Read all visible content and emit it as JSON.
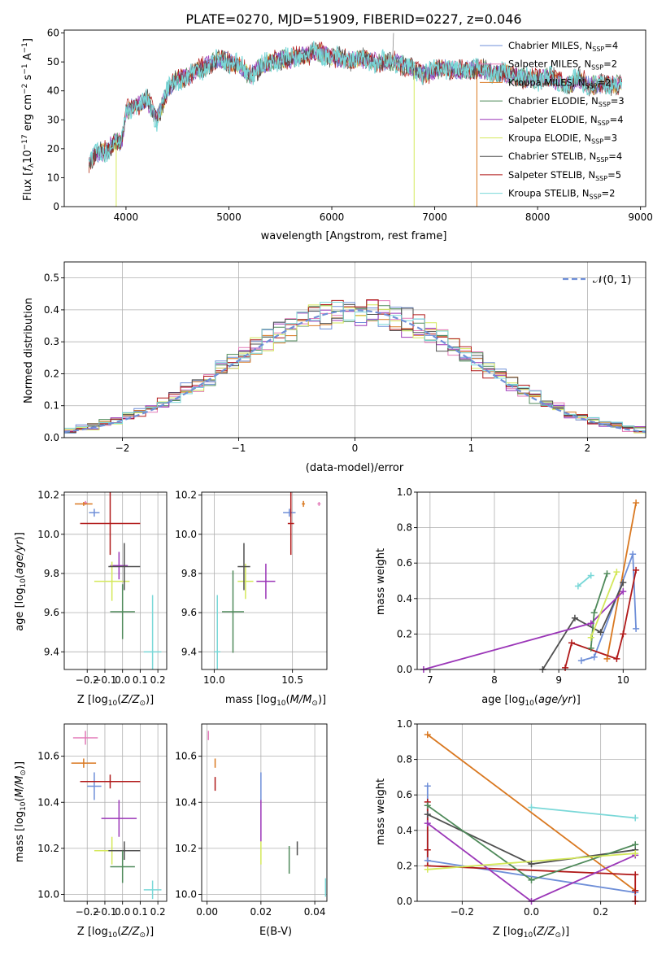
{
  "colors": {
    "Chabrier MILES": "#6f8fd8",
    "Salpeter MILES": "#e37ab8",
    "Kroupa MILES": "#d97820",
    "Chabrier ELODIE": "#4f8a5a",
    "Salpeter ELODIE": "#9b36b8",
    "Kroupa ELODIE": "#d4e85a",
    "Chabrier STELIB": "#505050",
    "Salpeter STELIB": "#b01818",
    "Kroupa STELIB": "#7ad8d8"
  },
  "legend_labels": [
    {
      "name": "Chabrier MILES",
      "text": "Chabrier MILES, N",
      "n": "4"
    },
    {
      "name": "Salpeter MILES",
      "text": "Salpeter MILES, N",
      "n": "2"
    },
    {
      "name": "Kroupa MILES",
      "text": "Kroupa MILES, N",
      "n": "2"
    },
    {
      "name": "Chabrier ELODIE",
      "text": "Chabrier ELODIE, N",
      "n": "3"
    },
    {
      "name": "Salpeter ELODIE",
      "text": "Salpeter ELODIE, N",
      "n": "4"
    },
    {
      "name": "Kroupa ELODIE",
      "text": "Kroupa ELODIE, N",
      "n": "3"
    },
    {
      "name": "Chabrier STELIB",
      "text": "Chabrier STELIB, N",
      "n": "4"
    },
    {
      "name": "Salpeter STELIB",
      "text": "Salpeter STELIB, N",
      "n": "5"
    },
    {
      "name": "Kroupa STELIB",
      "text": "Kroupa STELIB, N",
      "n": "2"
    }
  ],
  "legend_subscript": "SSP",
  "chart_data": [
    {
      "id": "spectrum",
      "type": "line",
      "title": "PLATE=0270, MJD=51909, FIBERID=0227, z=0.046",
      "xlabel": "wavelength [Angstrom, rest frame]",
      "ylabel": "Flux [fλ10⁻¹⁷ erg cm⁻² s⁻¹ A⁻¹]",
      "xlim": [
        3400,
        9050
      ],
      "ylim": [
        0,
        61
      ],
      "xticks": [
        4000,
        5000,
        6000,
        7000,
        8000,
        9000
      ],
      "yticks": [
        0,
        10,
        20,
        30,
        40,
        50,
        60
      ],
      "continuum": [
        [
          3640,
          15
        ],
        [
          3700,
          18
        ],
        [
          3800,
          19
        ],
        [
          3900,
          23
        ],
        [
          3960,
          22
        ],
        [
          4000,
          33
        ],
        [
          4100,
          35
        ],
        [
          4200,
          37
        ],
        [
          4300,
          30
        ],
        [
          4400,
          40
        ],
        [
          4500,
          44
        ],
        [
          4600,
          45
        ],
        [
          4700,
          47
        ],
        [
          4800,
          49
        ],
        [
          4900,
          51
        ],
        [
          5000,
          50
        ],
        [
          5100,
          49
        ],
        [
          5200,
          45
        ],
        [
          5300,
          48
        ],
        [
          5400,
          50
        ],
        [
          5500,
          51
        ],
        [
          5600,
          51
        ],
        [
          5700,
          52
        ],
        [
          5800,
          53
        ],
        [
          5900,
          53
        ],
        [
          6000,
          52
        ],
        [
          6100,
          51
        ],
        [
          6200,
          51
        ],
        [
          6300,
          51
        ],
        [
          6400,
          50
        ],
        [
          6500,
          50
        ],
        [
          6600,
          50
        ],
        [
          6700,
          49
        ],
        [
          6800,
          47
        ],
        [
          6900,
          46
        ],
        [
          7000,
          47
        ],
        [
          7100,
          48
        ],
        [
          7200,
          47
        ],
        [
          7300,
          47
        ],
        [
          7400,
          48
        ],
        [
          7500,
          47
        ],
        [
          7600,
          46
        ],
        [
          7700,
          46
        ],
        [
          7800,
          45
        ],
        [
          7900,
          44
        ],
        [
          8000,
          44
        ],
        [
          8100,
          45
        ],
        [
          8200,
          43
        ],
        [
          8300,
          42
        ],
        [
          8400,
          44
        ],
        [
          8500,
          42
        ],
        [
          8600,
          42
        ],
        [
          8700,
          42
        ],
        [
          8800,
          43
        ]
      ],
      "dropouts": [
        {
          "series": "Kroupa ELODIE",
          "x": 3905,
          "to": 0
        },
        {
          "series": "Kroupa ELODIE",
          "x": 6800,
          "to": 0
        },
        {
          "series": "Kroupa MILES",
          "x": 7410,
          "to": 0
        },
        {
          "series": "Kroupa ELODIE",
          "x": 8260,
          "to": 44
        }
      ]
    },
    {
      "id": "residuals",
      "type": "histogram",
      "xlabel": "(data-model)/error",
      "ylabel": "Normed distribution",
      "xlim": [
        -2.5,
        2.5
      ],
      "ylim": [
        0,
        0.55
      ],
      "xticks": [
        -2,
        -1,
        0,
        1,
        2
      ],
      "yticks": [
        0.0,
        0.1,
        0.2,
        0.3,
        0.4,
        0.5
      ],
      "bin_width": 0.1,
      "reference_curve": {
        "name": "N(0,1)",
        "label": "𝒩(0, 1)",
        "mean": 0,
        "sigma": 1,
        "color": "#6f8fd8"
      },
      "seed": 7
    },
    {
      "id": "age-vs-Z",
      "type": "errorbar",
      "xlabel": "Z [log10(Z/Z☉)]",
      "ylabel": "age [log10(age/yr)]",
      "xlim": [
        -0.33,
        0.25
      ],
      "ylim": [
        9.31,
        10.215
      ],
      "xticks": [
        -0.2,
        -0.1,
        0.0,
        0.1,
        0.2
      ],
      "yticks": [
        9.4,
        9.6,
        9.8,
        10.0,
        10.2
      ],
      "points": [
        {
          "series": "Chabrier MILES",
          "x": -0.16,
          "y": 10.11,
          "xerr": 0.03,
          "yerr": 0.02
        },
        {
          "series": "Salpeter MILES",
          "x": -0.21,
          "y": 10.16,
          "xerr": 0.01,
          "yerr": 0.01
        },
        {
          "series": "Kroupa MILES",
          "x": -0.22,
          "y": 10.155,
          "xerr": 0.05,
          "yerr": 0.01
        },
        {
          "series": "Chabrier ELODIE",
          "x": 0.0,
          "y": 9.605,
          "xerr": 0.07,
          "yerr": 0.14
        },
        {
          "series": "Salpeter ELODIE",
          "x": -0.02,
          "y": 9.84,
          "xerr": 0.05,
          "yerr": 0.07
        },
        {
          "series": "Kroupa ELODIE",
          "x": -0.06,
          "y": 9.76,
          "xerr": 0.1,
          "yerr": 0.1
        },
        {
          "series": "Chabrier STELIB",
          "x": 0.01,
          "y": 9.835,
          "xerr": 0.09,
          "yerr": 0.12
        },
        {
          "series": "Salpeter STELIB",
          "x": -0.07,
          "y": 10.055,
          "xerr": 0.17,
          "yerr": 0.16
        },
        {
          "series": "Kroupa STELIB",
          "x": 0.17,
          "y": 9.4,
          "xerr": 0.05,
          "yerr": 0.29
        }
      ]
    },
    {
      "id": "age-vs-mass",
      "type": "errorbar",
      "xlabel": "mass [log10(M/M☉)]",
      "ylabel": "",
      "xlim": [
        9.92,
        10.72
      ],
      "ylim": [
        9.31,
        10.215
      ],
      "xticks": [
        10.0,
        10.5
      ],
      "yticks": [
        9.4,
        9.6,
        9.8,
        10.0,
        10.2
      ],
      "points": [
        {
          "series": "Chabrier MILES",
          "x": 10.48,
          "y": 10.11,
          "xerr": 0.04,
          "yerr": 0.02
        },
        {
          "series": "Salpeter MILES",
          "x": 10.67,
          "y": 10.155,
          "xerr": 0.01,
          "yerr": 0.01
        },
        {
          "series": "Kroupa MILES",
          "x": 10.57,
          "y": 10.155,
          "xerr": 0.01,
          "yerr": 0.015
        },
        {
          "series": "Chabrier ELODIE",
          "x": 10.12,
          "y": 9.605,
          "xerr": 0.07,
          "yerr": 0.21
        },
        {
          "series": "Salpeter ELODIE",
          "x": 10.33,
          "y": 9.76,
          "xerr": 0.06,
          "yerr": 0.09
        },
        {
          "series": "Kroupa ELODIE",
          "x": 10.2,
          "y": 9.76,
          "xerr": 0.05,
          "yerr": 0.09
        },
        {
          "series": "Chabrier STELIB",
          "x": 10.19,
          "y": 9.835,
          "xerr": 0.04,
          "yerr": 0.12
        },
        {
          "series": "Salpeter STELIB",
          "x": 10.49,
          "y": 10.055,
          "xerr": 0.02,
          "yerr": 0.16
        },
        {
          "series": "Kroupa STELIB",
          "x": 10.02,
          "y": 9.4,
          "xerr": 0.02,
          "yerr": 0.29
        }
      ]
    },
    {
      "id": "weight-vs-age",
      "type": "line",
      "xlabel": "age [log10(age/yr)]",
      "ylabel": "mass weight",
      "xlim": [
        6.8,
        10.35
      ],
      "ylim": [
        0,
        1
      ],
      "xticks": [
        7,
        8,
        9,
        10
      ],
      "yticks": [
        0.0,
        0.2,
        0.4,
        0.6,
        0.8,
        1.0
      ],
      "series": [
        {
          "name": "Kroupa MILES",
          "x": [
            9.75,
            10.2
          ],
          "y": [
            0.06,
            0.94
          ]
        },
        {
          "name": "Chabrier MILES",
          "x": [
            9.35,
            9.55,
            10.15,
            10.2
          ],
          "y": [
            0.05,
            0.07,
            0.65,
            0.23
          ]
        },
        {
          "name": "Salpeter STELIB",
          "x": [
            9.1,
            9.2,
            9.9,
            10.0,
            10.2
          ],
          "y": [
            0.01,
            0.15,
            0.06,
            0.2,
            0.56
          ]
        },
        {
          "name": "Chabrier STELIB",
          "x": [
            8.75,
            9.25,
            9.65,
            10.0
          ],
          "y": [
            0.0,
            0.29,
            0.21,
            0.49
          ]
        },
        {
          "name": "Salpeter ELODIE",
          "x": [
            6.9,
            9.5,
            10.0
          ],
          "y": [
            0.0,
            0.26,
            0.44
          ]
        },
        {
          "name": "Chabrier ELODIE",
          "x": [
            9.5,
            9.55,
            9.75
          ],
          "y": [
            0.12,
            0.32,
            0.54
          ]
        },
        {
          "name": "Kroupa ELODIE",
          "x": [
            9.5,
            9.9
          ],
          "y": [
            0.18,
            0.55
          ]
        },
        {
          "name": "Kroupa STELIB",
          "x": [
            9.3,
            9.5
          ],
          "y": [
            0.47,
            0.53
          ]
        }
      ]
    },
    {
      "id": "mass-vs-Z",
      "type": "errorbar",
      "xlabel": "Z [log10(Z/Z☉)]",
      "ylabel": "mass [log10(M/M☉)]",
      "xlim": [
        -0.33,
        0.25
      ],
      "ylim": [
        9.97,
        10.74
      ],
      "xticks": [
        -0.2,
        -0.1,
        0.0,
        0.1,
        0.2
      ],
      "yticks": [
        10.0,
        10.2,
        10.4,
        10.6
      ],
      "points": [
        {
          "series": "Salpeter MILES",
          "x": -0.21,
          "y": 10.68,
          "xerr": 0.07,
          "yerr": 0.03
        },
        {
          "series": "Kroupa MILES",
          "x": -0.22,
          "y": 10.57,
          "xerr": 0.07,
          "yerr": 0.02
        },
        {
          "series": "Chabrier MILES",
          "x": -0.16,
          "y": 10.47,
          "xerr": 0.04,
          "yerr": 0.06
        },
        {
          "series": "Salpeter STELIB",
          "x": -0.07,
          "y": 10.49,
          "xerr": 0.17,
          "yerr": 0.03
        },
        {
          "series": "Salpeter ELODIE",
          "x": -0.02,
          "y": 10.33,
          "xerr": 0.1,
          "yerr": 0.08
        },
        {
          "series": "Kroupa ELODIE",
          "x": -0.06,
          "y": 10.19,
          "xerr": 0.1,
          "yerr": 0.06
        },
        {
          "series": "Chabrier STELIB",
          "x": 0.01,
          "y": 10.19,
          "xerr": 0.09,
          "yerr": 0.04
        },
        {
          "series": "Chabrier ELODIE",
          "x": 0.0,
          "y": 10.12,
          "xerr": 0.07,
          "yerr": 0.07
        },
        {
          "series": "Kroupa STELIB",
          "x": 0.17,
          "y": 10.02,
          "xerr": 0.05,
          "yerr": 0.04
        }
      ]
    },
    {
      "id": "mass-vs-ebv",
      "type": "errorbar",
      "xlabel": "E(B-V)",
      "ylabel": "",
      "xlim": [
        -0.002,
        0.0445
      ],
      "ylim": [
        9.97,
        10.74
      ],
      "xticks": [
        0.0,
        0.02,
        0.04
      ],
      "yticks": [
        10.0,
        10.2,
        10.4,
        10.6
      ],
      "points": [
        {
          "series": "Salpeter MILES",
          "x": 0.0005,
          "y": 10.69,
          "xerr": 0,
          "yerr": 0.02
        },
        {
          "series": "Kroupa MILES",
          "x": 0.003,
          "y": 10.57,
          "xerr": 0,
          "yerr": 0.02
        },
        {
          "series": "Salpeter STELIB",
          "x": 0.003,
          "y": 10.48,
          "xerr": 0,
          "yerr": 0.03
        },
        {
          "series": "Chabrier MILES",
          "x": 0.02,
          "y": 10.47,
          "xerr": 0,
          "yerr": 0.06
        },
        {
          "series": "Salpeter ELODIE",
          "x": 0.02,
          "y": 10.32,
          "xerr": 0,
          "yerr": 0.09
        },
        {
          "series": "Kroupa ELODIE",
          "x": 0.02,
          "y": 10.18,
          "xerr": 0,
          "yerr": 0.05
        },
        {
          "series": "Chabrier STELIB",
          "x": 0.0335,
          "y": 10.2,
          "xerr": 0,
          "yerr": 0.03
        },
        {
          "series": "Chabrier ELODIE",
          "x": 0.0305,
          "y": 10.15,
          "xerr": 0,
          "yerr": 0.06
        },
        {
          "series": "Kroupa STELIB",
          "x": 0.044,
          "y": 10.03,
          "xerr": 0,
          "yerr": 0.04
        }
      ]
    },
    {
      "id": "weight-vs-Z",
      "type": "line",
      "xlabel": "Z [log10(Z/Z☉)]",
      "ylabel": "mass weight",
      "xlim": [
        -0.33,
        0.33
      ],
      "ylim": [
        0,
        1
      ],
      "xticks": [
        -0.2,
        0.0,
        0.2
      ],
      "yticks": [
        0.0,
        0.2,
        0.4,
        0.6,
        0.8,
        1.0
      ],
      "series": [
        {
          "name": "Kroupa MILES",
          "x": [
            -0.3,
            0.3
          ],
          "y": [
            0.94,
            0.06
          ]
        },
        {
          "name": "Chabrier MILES",
          "x": [
            -0.3,
            -0.3,
            0.3
          ],
          "y": [
            0.65,
            0.23,
            0.05
          ]
        },
        {
          "name": "Salpeter STELIB",
          "x": [
            -0.3,
            -0.3,
            -0.3,
            0.3,
            0.3,
            0.3
          ],
          "y": [
            0.56,
            0.29,
            0.2,
            0.15,
            0.06,
            0.0
          ]
        },
        {
          "name": "Chabrier STELIB",
          "x": [
            -0.3,
            0.0,
            0.3
          ],
          "y": [
            0.49,
            0.21,
            0.29
          ]
        },
        {
          "name": "Salpeter ELODIE",
          "x": [
            -0.3,
            0.0,
            0.3
          ],
          "y": [
            0.44,
            0.0,
            0.26
          ]
        },
        {
          "name": "Chabrier ELODIE",
          "x": [
            -0.3,
            0.0,
            0.3
          ],
          "y": [
            0.54,
            0.12,
            0.32
          ]
        },
        {
          "name": "Kroupa ELODIE",
          "x": [
            -0.3,
            0.3
          ],
          "y": [
            0.18,
            0.27
          ]
        },
        {
          "name": "Kroupa STELIB",
          "x": [
            0.0,
            0.3
          ],
          "y": [
            0.53,
            0.47
          ]
        }
      ]
    }
  ]
}
